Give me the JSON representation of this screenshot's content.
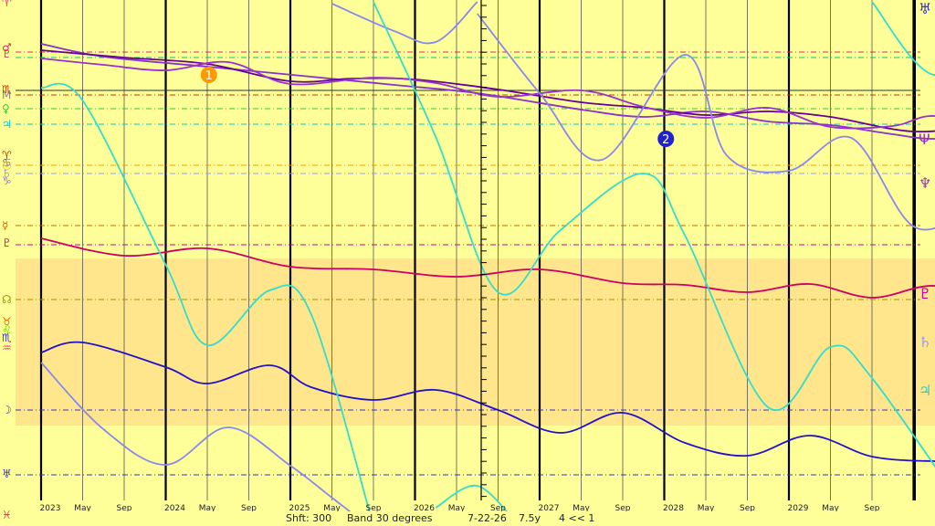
{
  "chart_data": {
    "type": "line",
    "x_ticks": [
      {
        "label": "2023",
        "year_major": true
      },
      {
        "label": "May"
      },
      {
        "label": "Sep"
      },
      {
        "label": "2024",
        "year_major": true
      },
      {
        "label": "May"
      },
      {
        "label": "Sep"
      },
      {
        "label": "2025",
        "year_major": true
      },
      {
        "label": "May"
      },
      {
        "label": "Sep"
      },
      {
        "label": "2026",
        "year_major": true
      },
      {
        "label": "May"
      },
      {
        "label": "Sep"
      },
      {
        "label": "2027",
        "year_major": true
      },
      {
        "label": "May"
      },
      {
        "label": "Sep"
      },
      {
        "label": "2028",
        "year_major": true
      },
      {
        "label": "May"
      },
      {
        "label": "Sep"
      },
      {
        "label": "2029",
        "year_major": true
      },
      {
        "label": "May"
      },
      {
        "label": "Sep"
      }
    ],
    "x_range": [
      "2022-09",
      "2030-03"
    ],
    "shaded_band": {
      "from_row": 283,
      "to_row": 466,
      "color": "#ffe08a"
    },
    "planet_levels": [
      {
        "symbol": "♂",
        "color": "#cc3366",
        "row": 57
      },
      {
        "symbol": "♃",
        "color": "#00cc66",
        "row": 63
      },
      {
        "symbol": "M",
        "color": "#888888",
        "row": 99
      },
      {
        "symbol": "♏",
        "color": "#cc3300",
        "row": 104
      },
      {
        "symbol": "♀",
        "color": "#33cc33",
        "row": 119
      },
      {
        "symbol": "♃",
        "color": "#00cccc",
        "row": 136
      },
      {
        "symbol": "☉",
        "color": "#ff9900",
        "row": 181
      },
      {
        "symbol": "♄",
        "color": "#9999ff",
        "row": 190
      },
      {
        "symbol": "☿",
        "color": "#cc6600",
        "row": 247
      },
      {
        "symbol": "♇",
        "color": "#cc0099",
        "row": 268
      },
      {
        "symbol": "☊",
        "color": "#999900",
        "row": 328
      },
      {
        "symbol": "☽",
        "color": "#3333cc",
        "row": 449
      },
      {
        "symbol": "♅",
        "color": "#3333cc",
        "row": 520
      }
    ],
    "left_glyphs": [
      {
        "text": "♈",
        "color": "#ff3366",
        "row": 3
      },
      {
        "text": "♇",
        "color": "#cc3366",
        "row": 59
      },
      {
        "text": "♂",
        "color": "#cc3366",
        "row": 52
      },
      {
        "text": "M",
        "color": "#888888",
        "row": 104
      },
      {
        "text": "♏",
        "color": "#cc3300",
        "row": 98
      },
      {
        "text": "♀",
        "color": "#33cc33",
        "row": 119
      },
      {
        "text": "♃",
        "color": "#00cccc",
        "row": 136
      },
      {
        "text": "♈",
        "color": "#cc3300",
        "row": 170
      },
      {
        "text": "♋",
        "color": "#666666",
        "row": 178
      },
      {
        "text": "☉",
        "color": "#ff9900",
        "row": 182
      },
      {
        "text": "♄",
        "color": "#9999ff",
        "row": 190
      },
      {
        "text": "♑",
        "color": "#9966ff",
        "row": 198
      },
      {
        "text": "☿",
        "color": "#cc6600",
        "row": 247
      },
      {
        "text": "♇",
        "color": "#cc0099",
        "row": 266
      },
      {
        "text": "☊",
        "color": "#999900",
        "row": 328
      },
      {
        "text": "♉",
        "color": "#ff6600",
        "row": 352
      },
      {
        "text": "♌",
        "color": "#66cc00",
        "row": 361
      },
      {
        "text": "♏",
        "color": "#3333cc",
        "row": 370
      },
      {
        "text": "♒",
        "color": "#ff3399",
        "row": 381
      },
      {
        "text": "☽",
        "color": "#3333cc",
        "row": 449
      },
      {
        "text": "♅",
        "color": "#3333cc",
        "row": 519
      },
      {
        "text": "♓",
        "color": "#ff3366",
        "row": 564
      }
    ],
    "right_glyphs": [
      {
        "text": "♅",
        "color": "#3333cc",
        "row": 10
      },
      {
        "text": "Ψ",
        "color": "#9933cc",
        "row": 153
      },
      {
        "text": "♆",
        "color": "#9933cc",
        "row": 201
      },
      {
        "text": "♇",
        "color": "#cc0099",
        "row": 322
      },
      {
        "text": "♄",
        "color": "#9999ff",
        "row": 375
      },
      {
        "text": "♃",
        "color": "#33cccc",
        "row": 428
      }
    ],
    "markers": [
      {
        "label": "1",
        "color": "#ff9900",
        "x_index": 4.5,
        "row": 82
      },
      {
        "label": "2",
        "color": "#2222cc",
        "x_index": 15.5,
        "row": 152
      }
    ],
    "series": [
      {
        "color": "#8833cc",
        "points": [
          [
            0,
            48
          ],
          [
            1.5,
            62
          ],
          [
            4,
            73
          ],
          [
            6.5,
            84
          ],
          [
            8.5,
            93
          ],
          [
            10.5,
            102
          ],
          [
            13,
            120
          ],
          [
            14.5,
            128
          ],
          [
            16,
            122
          ],
          [
            17.5,
            133
          ],
          [
            19,
            137
          ],
          [
            20.5,
            147
          ],
          [
            21.5,
            152
          ],
          [
            23,
            147
          ],
          [
            24.5,
            153
          ],
          [
            26,
            152
          ],
          [
            27.5,
            160
          ],
          [
            29,
            155
          ],
          [
            30.5,
            150
          ]
        ]
      },
      {
        "color": "#660099",
        "points": [
          [
            0,
            55
          ],
          [
            2,
            63
          ],
          [
            4,
            70
          ],
          [
            6,
            89
          ],
          [
            7.5,
            86
          ],
          [
            9,
            87
          ],
          [
            11,
            98
          ],
          [
            13,
            112
          ],
          [
            14.5,
            118
          ],
          [
            16,
            126
          ],
          [
            17.5,
            122
          ],
          [
            19,
            128
          ],
          [
            21,
            144
          ],
          [
            23,
            138
          ],
          [
            25,
            150
          ],
          [
            27,
            164
          ],
          [
            28.5,
            171
          ],
          [
            30,
            180
          ],
          [
            30.5,
            175
          ]
        ]
      },
      {
        "color": "#9933cc",
        "points": [
          [
            0,
            64
          ],
          [
            1.5,
            71
          ],
          [
            3,
            77
          ],
          [
            4.5,
            68
          ],
          [
            6,
            92
          ],
          [
            8,
            85
          ],
          [
            9.5,
            91
          ],
          [
            11,
            106
          ],
          [
            13,
            99
          ],
          [
            14.5,
            117
          ],
          [
            16,
            129
          ],
          [
            17.5,
            118
          ],
          [
            19,
            139
          ],
          [
            20.5,
            138
          ],
          [
            21.5,
            127
          ],
          [
            23,
            143
          ],
          [
            25,
            158
          ],
          [
            26.5,
            146
          ],
          [
            28,
            166
          ],
          [
            30.5,
            150
          ]
        ]
      },
      {
        "color": "#cc0066",
        "points": [
          [
            0,
            261
          ],
          [
            2,
            280
          ],
          [
            4,
            272
          ],
          [
            6,
            292
          ],
          [
            8,
            295
          ],
          [
            10,
            303
          ],
          [
            12,
            295
          ],
          [
            14,
            310
          ],
          [
            15.5,
            312
          ],
          [
            17,
            320
          ],
          [
            18.5,
            311
          ],
          [
            20,
            326
          ],
          [
            21.5,
            313
          ],
          [
            23,
            333
          ],
          [
            24.5,
            339
          ],
          [
            25.5,
            322
          ],
          [
            27,
            338
          ],
          [
            28.5,
            346
          ],
          [
            30,
            333
          ],
          [
            30.5,
            341
          ]
        ]
      },
      {
        "color": "#2211cc",
        "points": [
          [
            0,
            386
          ],
          [
            1,
            375
          ],
          [
            3,
            402
          ],
          [
            4,
            420
          ],
          [
            5.5,
            400
          ],
          [
            6.5,
            424
          ],
          [
            8,
            438
          ],
          [
            9.5,
            427
          ],
          [
            11,
            449
          ],
          [
            12.5,
            474
          ],
          [
            14,
            452
          ],
          [
            15.5,
            485
          ],
          [
            17,
            499
          ],
          [
            18.5,
            477
          ],
          [
            20,
            500
          ],
          [
            21.5,
            505
          ],
          [
            22.5,
            503
          ],
          [
            24,
            521
          ],
          [
            25.5,
            545
          ],
          [
            27,
            529
          ],
          [
            28.5,
            541
          ],
          [
            30.5,
            554
          ]
        ]
      },
      {
        "color": "#8888ee",
        "points": [
          [
            0,
            397
          ],
          [
            1.5,
            470
          ],
          [
            3,
            509
          ],
          [
            4.5,
            468
          ],
          [
            6,
            510
          ],
          [
            7,
            545
          ],
          [
            8,
            580
          ]
        ]
      },
      {
        "color": "#8888ee",
        "points": [
          [
            7,
            4
          ],
          [
            8.5,
            34
          ],
          [
            9.5,
            46
          ],
          [
            10.5,
            2
          ]
        ]
      },
      {
        "color": "#8888ee",
        "points": [
          [
            10.5,
            15
          ],
          [
            12,
            102
          ],
          [
            13.5,
            175
          ],
          [
            15.5,
            60
          ],
          [
            16.5,
            170
          ],
          [
            18,
            187
          ],
          [
            19.5,
            151
          ],
          [
            21,
            248
          ],
          [
            22.5,
            234
          ],
          [
            23.5,
            268
          ],
          [
            25.5,
            222
          ],
          [
            27,
            300
          ],
          [
            28.5,
            352
          ],
          [
            29.5,
            306
          ],
          [
            31,
            370
          ],
          [
            32,
            435
          ],
          [
            33.5,
            391
          ]
        ]
      },
      {
        "color": "#33ddcc",
        "points": [
          [
            0,
            96
          ],
          [
            1,
            110
          ],
          [
            3,
            290
          ],
          [
            4,
            378
          ],
          [
            5.5,
            318
          ],
          [
            6.5,
            344
          ],
          [
            8,
            576
          ]
        ]
      },
      {
        "color": "#33ddcc",
        "points": [
          [
            8,
            2
          ],
          [
            9.5,
            150
          ],
          [
            11,
            320
          ],
          [
            12.5,
            252
          ],
          [
            14.5,
            190
          ],
          [
            15.5,
            258
          ],
          [
            17.5,
            446
          ],
          [
            19,
            380
          ],
          [
            20,
            414
          ],
          [
            22.5,
            576
          ]
        ]
      },
      {
        "color": "#33ddcc",
        "points": [
          [
            9.5,
            556
          ],
          [
            10.5,
            532
          ],
          [
            11.5,
            576
          ]
        ]
      },
      {
        "color": "#33ddcc",
        "points": [
          [
            20,
            2
          ],
          [
            21.5,
            82
          ],
          [
            23,
            22
          ],
          [
            24,
            60
          ],
          [
            25.5,
            200
          ],
          [
            26.5,
            268
          ],
          [
            28,
            208
          ],
          [
            29.5,
            300
          ],
          [
            30.5,
            428
          ]
        ]
      }
    ]
  },
  "status": {
    "shift": "Shft: 300",
    "band": "Band 30 degrees",
    "date": "7-22-26",
    "span": "7.5y",
    "nav": "4 << 1"
  }
}
